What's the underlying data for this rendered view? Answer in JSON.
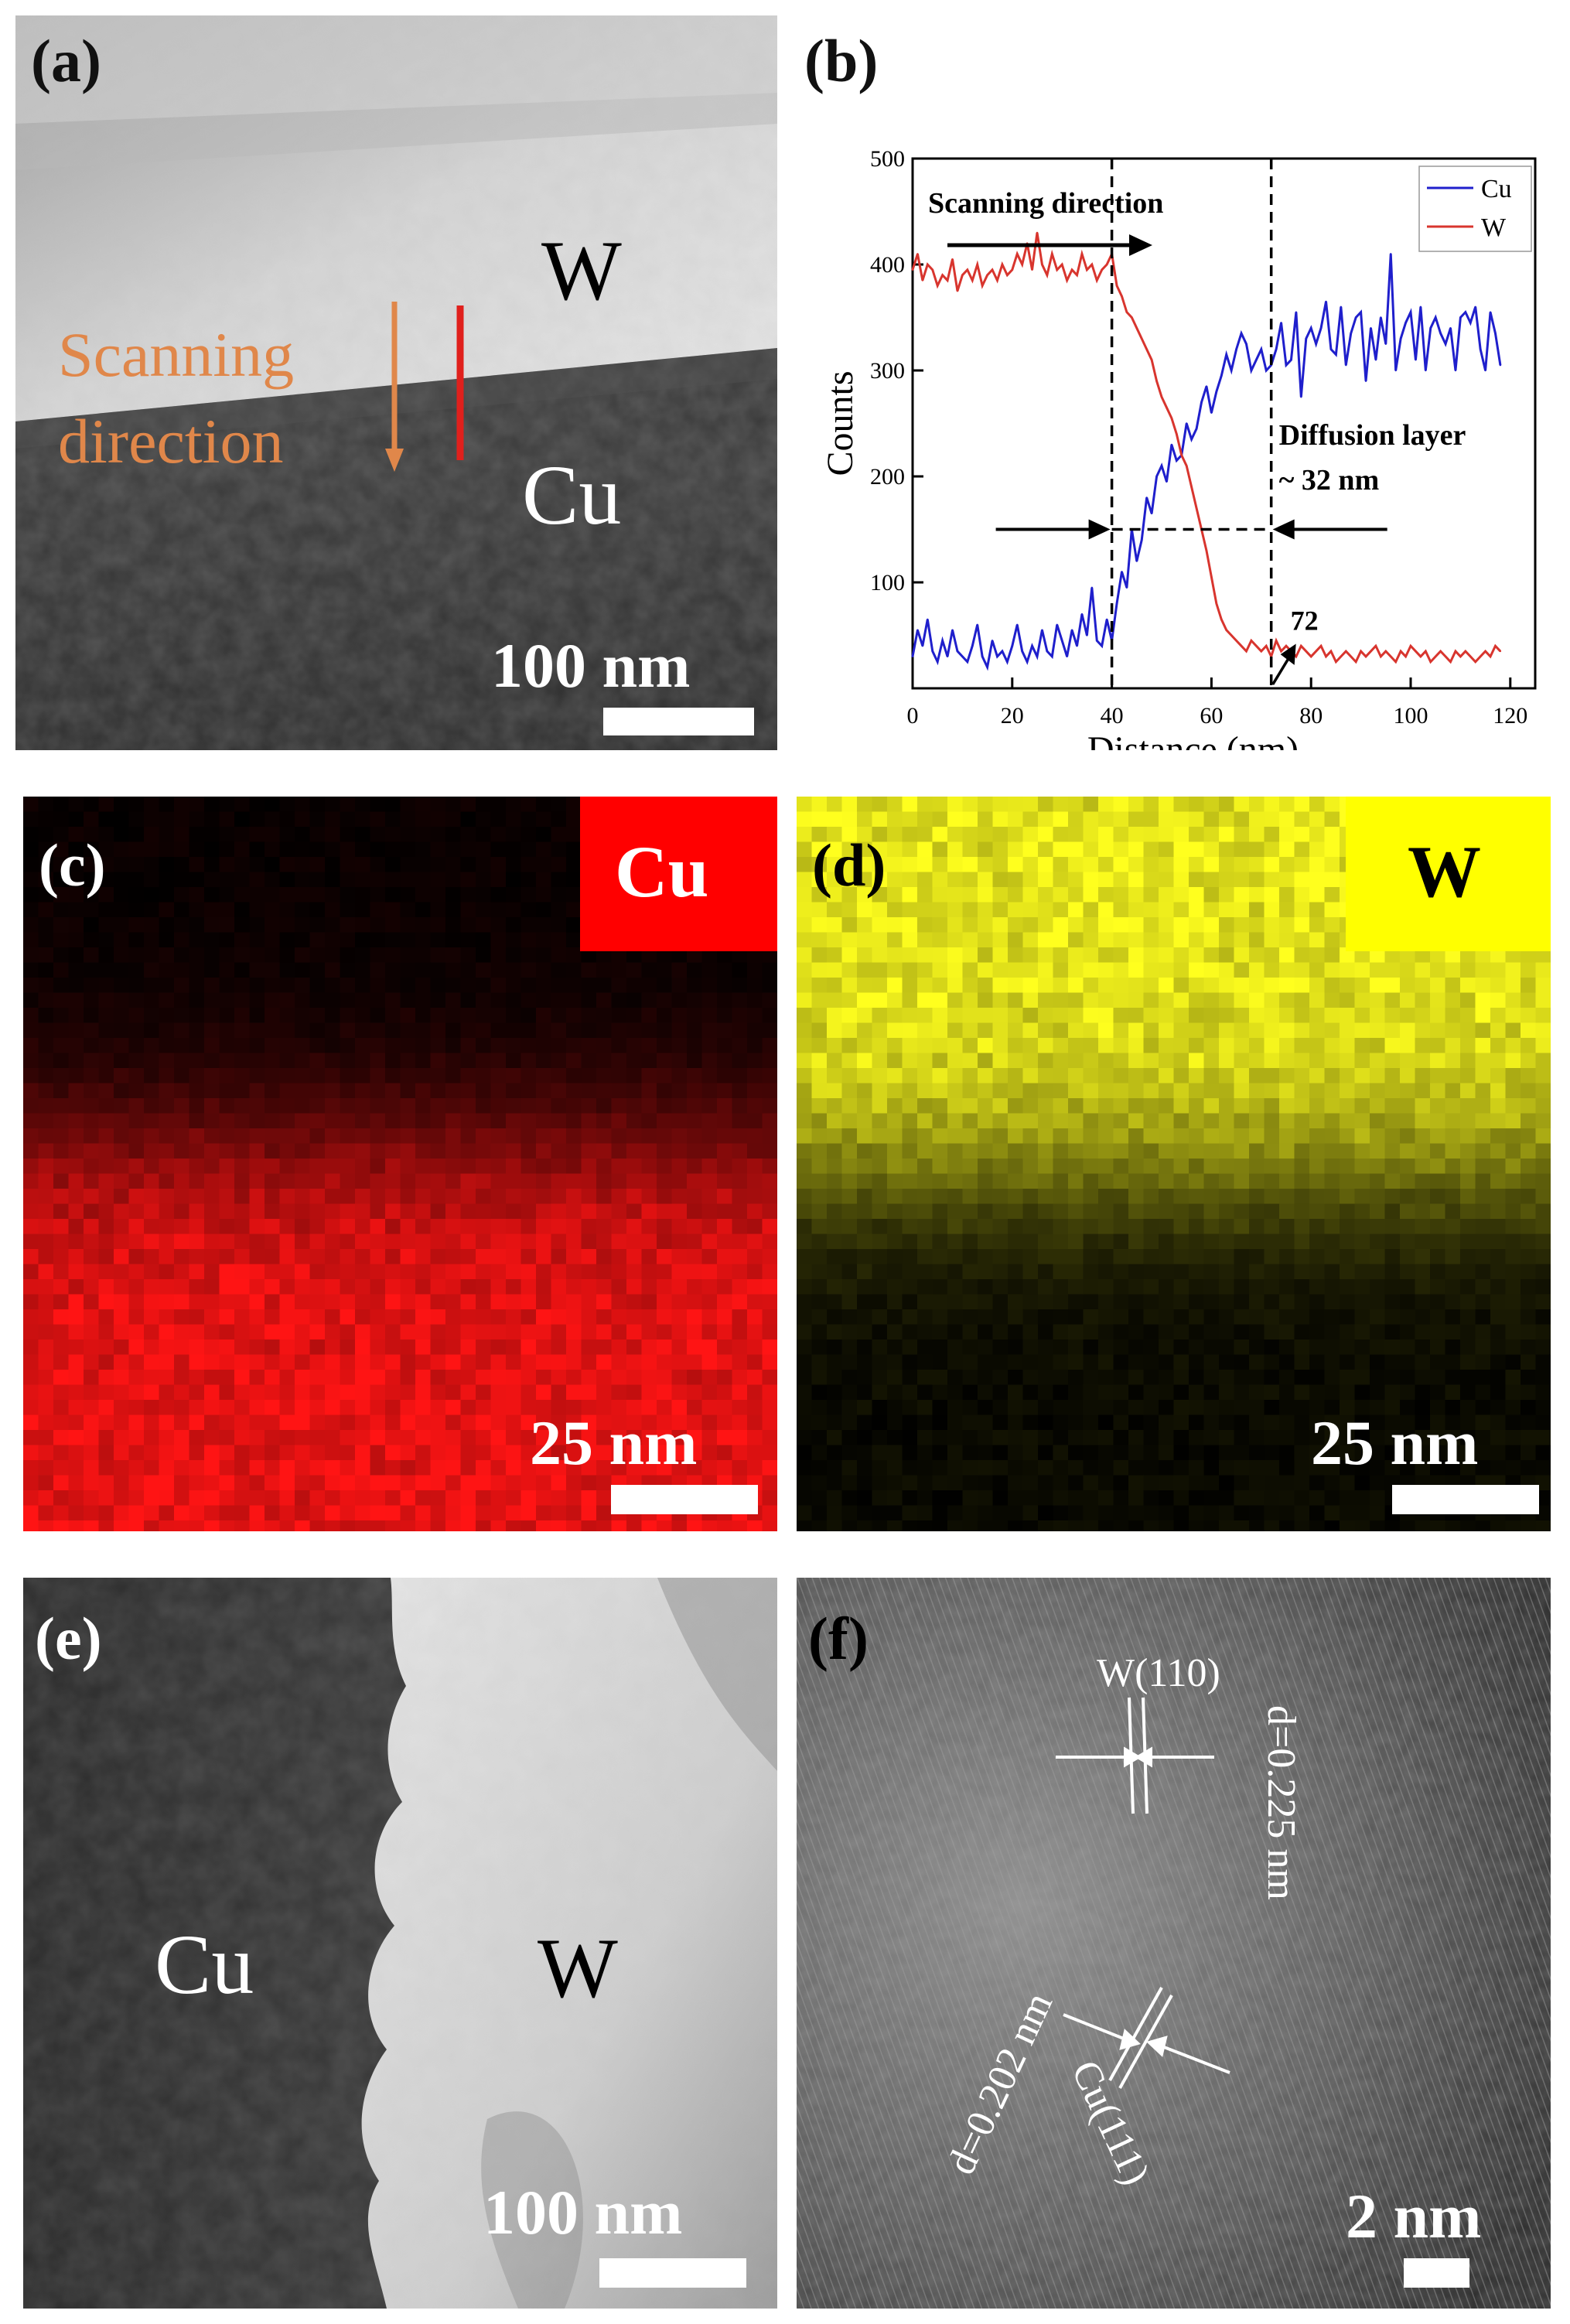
{
  "panels": {
    "a": {
      "label": "(a)",
      "top_material": "W",
      "bottom_material": "Cu",
      "scan_text_line1": "Scanning",
      "scan_text_line2": "direction",
      "scale": "100 nm",
      "colors": {
        "scan_arrow": "#E0874A",
        "scan_line": "#E0201C"
      }
    },
    "b": {
      "label": "(b)"
    },
    "c": {
      "label": "(c)",
      "element": "Cu",
      "scale": "25 nm",
      "color": "#FF0000"
    },
    "d": {
      "label": "(d)",
      "element": "W",
      "scale": "25 nm",
      "color": "#FFFF00"
    },
    "e": {
      "label": "(e)",
      "left_material": "Cu",
      "right_material": "W",
      "scale": "100 nm"
    },
    "f": {
      "label": "(f)",
      "w_plane": "W(110)",
      "w_spacing": "d=0.225 nm",
      "cu_plane": "Cu(111)",
      "cu_spacing": "d=0.202 nm",
      "scale": "2 nm"
    }
  },
  "chart_data": {
    "type": "line",
    "xlabel": "Distance (nm)",
    "ylabel": "Counts",
    "xlim": [
      0,
      125
    ],
    "ylim": [
      0,
      500
    ],
    "xticks": [
      0,
      20,
      40,
      60,
      80,
      100,
      120
    ],
    "yticks": [
      100,
      200,
      300,
      400,
      500
    ],
    "legend_position": "top-right",
    "series": [
      {
        "name": "Cu",
        "color": "#1F1FCC",
        "x": [
          0,
          1,
          2,
          3,
          4,
          5,
          6,
          7,
          8,
          9,
          10,
          11,
          12,
          13,
          14,
          15,
          16,
          17,
          18,
          19,
          20,
          21,
          22,
          23,
          24,
          25,
          26,
          27,
          28,
          29,
          30,
          31,
          32,
          33,
          34,
          35,
          36,
          37,
          38,
          39,
          40,
          41,
          42,
          43,
          44,
          45,
          46,
          47,
          48,
          49,
          50,
          51,
          52,
          53,
          54,
          55,
          56,
          57,
          58,
          59,
          60,
          61,
          62,
          63,
          64,
          65,
          66,
          67,
          68,
          69,
          70,
          71,
          72,
          73,
          74,
          75,
          76,
          77,
          78,
          79,
          80,
          81,
          82,
          83,
          84,
          85,
          86,
          87,
          88,
          89,
          90,
          91,
          92,
          93,
          94,
          95,
          96,
          97,
          98,
          99,
          100,
          101,
          102,
          103,
          104,
          105,
          106,
          107,
          108,
          109,
          110,
          111,
          112,
          113,
          114,
          115,
          116,
          117,
          118
        ],
        "values": [
          30,
          55,
          40,
          65,
          35,
          25,
          45,
          30,
          55,
          35,
          30,
          25,
          40,
          60,
          30,
          20,
          45,
          30,
          35,
          25,
          40,
          60,
          35,
          25,
          40,
          30,
          55,
          35,
          30,
          60,
          45,
          30,
          55,
          40,
          70,
          50,
          95,
          45,
          40,
          65,
          45,
          80,
          110,
          95,
          150,
          120,
          140,
          180,
          165,
          200,
          210,
          195,
          230,
          215,
          220,
          250,
          235,
          245,
          270,
          285,
          260,
          280,
          295,
          315,
          300,
          320,
          335,
          325,
          300,
          310,
          320,
          300,
          305,
          320,
          345,
          305,
          310,
          355,
          275,
          330,
          340,
          325,
          340,
          365,
          320,
          315,
          360,
          305,
          335,
          350,
          355,
          290,
          340,
          310,
          350,
          325,
          410,
          300,
          330,
          345,
          355,
          310,
          360,
          300,
          340,
          350,
          335,
          325,
          340,
          300,
          350,
          355,
          345,
          360,
          320,
          300,
          355,
          335,
          305
        ]
      },
      {
        "name": "W",
        "color": "#D8352E",
        "x": [
          0,
          1,
          2,
          3,
          4,
          5,
          6,
          7,
          8,
          9,
          10,
          11,
          12,
          13,
          14,
          15,
          16,
          17,
          18,
          19,
          20,
          21,
          22,
          23,
          24,
          25,
          26,
          27,
          28,
          29,
          30,
          31,
          32,
          33,
          34,
          35,
          36,
          37,
          38,
          39,
          40,
          41,
          42,
          43,
          44,
          45,
          46,
          47,
          48,
          49,
          50,
          51,
          52,
          53,
          54,
          55,
          56,
          57,
          58,
          59,
          60,
          61,
          62,
          63,
          64,
          65,
          66,
          67,
          68,
          69,
          70,
          71,
          72,
          73,
          74,
          75,
          76,
          77,
          78,
          79,
          80,
          81,
          82,
          83,
          84,
          85,
          86,
          87,
          88,
          89,
          90,
          91,
          92,
          93,
          94,
          95,
          96,
          97,
          98,
          99,
          100,
          101,
          102,
          103,
          104,
          105,
          106,
          107,
          108,
          109,
          110,
          111,
          112,
          113,
          114,
          115,
          116,
          117,
          118
        ],
        "values": [
          395,
          410,
          385,
          400,
          395,
          380,
          390,
          385,
          405,
          375,
          390,
          395,
          385,
          400,
          380,
          390,
          395,
          385,
          400,
          390,
          395,
          410,
          400,
          420,
          395,
          430,
          400,
          390,
          410,
          395,
          400,
          385,
          395,
          390,
          410,
          395,
          400,
          385,
          395,
          400,
          410,
          380,
          370,
          355,
          350,
          340,
          330,
          320,
          310,
          290,
          275,
          265,
          255,
          240,
          220,
          210,
          190,
          170,
          150,
          130,
          105,
          80,
          65,
          55,
          50,
          45,
          40,
          35,
          45,
          40,
          35,
          40,
          30,
          45,
          35,
          40,
          35,
          30,
          40,
          35,
          30,
          35,
          40,
          30,
          35,
          25,
          30,
          35,
          30,
          25,
          35,
          30,
          35,
          40,
          30,
          35,
          30,
          25,
          35,
          30,
          40,
          35,
          30,
          35,
          25,
          30,
          35,
          30,
          25,
          35,
          30,
          35,
          30,
          25,
          30,
          35,
          30,
          40,
          35
        ]
      }
    ],
    "annotations": {
      "scan_text": "Scanning direction",
      "diffusion_line1": "Diffusion layer",
      "diffusion_line2": "~ 32 nm",
      "marker_72": "72",
      "vlines": [
        40,
        72
      ],
      "hline_y": 150
    }
  }
}
